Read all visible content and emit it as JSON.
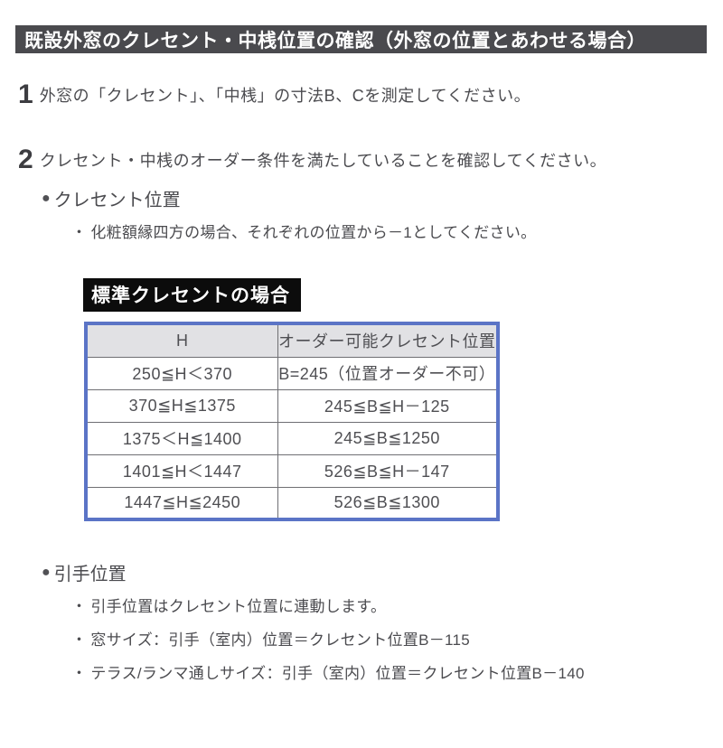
{
  "doc": {
    "title": "既設外窓のクレセント・中桟位置の確認（外窓の位置とあわせる場合）",
    "bullet_glyph": "●",
    "dot_glyph": "・",
    "steps": [
      {
        "number": "1",
        "text": "外窓の「クレセント」、「中桟」の寸法B、Cを測定してください。"
      },
      {
        "number": "2",
        "text": "クレセント・中桟のオーダー条件を満たしていることを確認してください。"
      }
    ],
    "crescent": {
      "heading": "クレセント位置",
      "note": "化粧額縁四方の場合、それぞれの位置から－1としてください。",
      "table_label": "標準クレセントの場合",
      "table": {
        "headers": [
          "H",
          "オーダー可能クレセント位置"
        ],
        "rows": [
          [
            "250≦H＜370",
            "B=245（位置オーダー不可）"
          ],
          [
            "370≦H≦1375",
            "245≦B≦H－125"
          ],
          [
            "1375＜H≦1400",
            "245≦B≦1250"
          ],
          [
            "1401≦H＜1447",
            "526≦B≦H－147"
          ],
          [
            "1447≦H≦2450",
            "526≦B≦1300"
          ]
        ]
      }
    },
    "handle": {
      "heading": "引手位置",
      "notes": [
        "引手位置はクレセント位置に連動します。",
        "窓サイズ：引手（室内）位置＝クレセント位置B－115",
        "テラス/ランマ通しサイズ：引手（室内）位置＝クレセント位置B－140"
      ]
    },
    "colors": {
      "title_bar_bg": "#4a4a4e",
      "table_border_blue": "#5b74c6",
      "table_header_bg": "#e1e1e4",
      "label_bg": "#0c0c0c",
      "body_text": "#4b4b4f"
    }
  }
}
